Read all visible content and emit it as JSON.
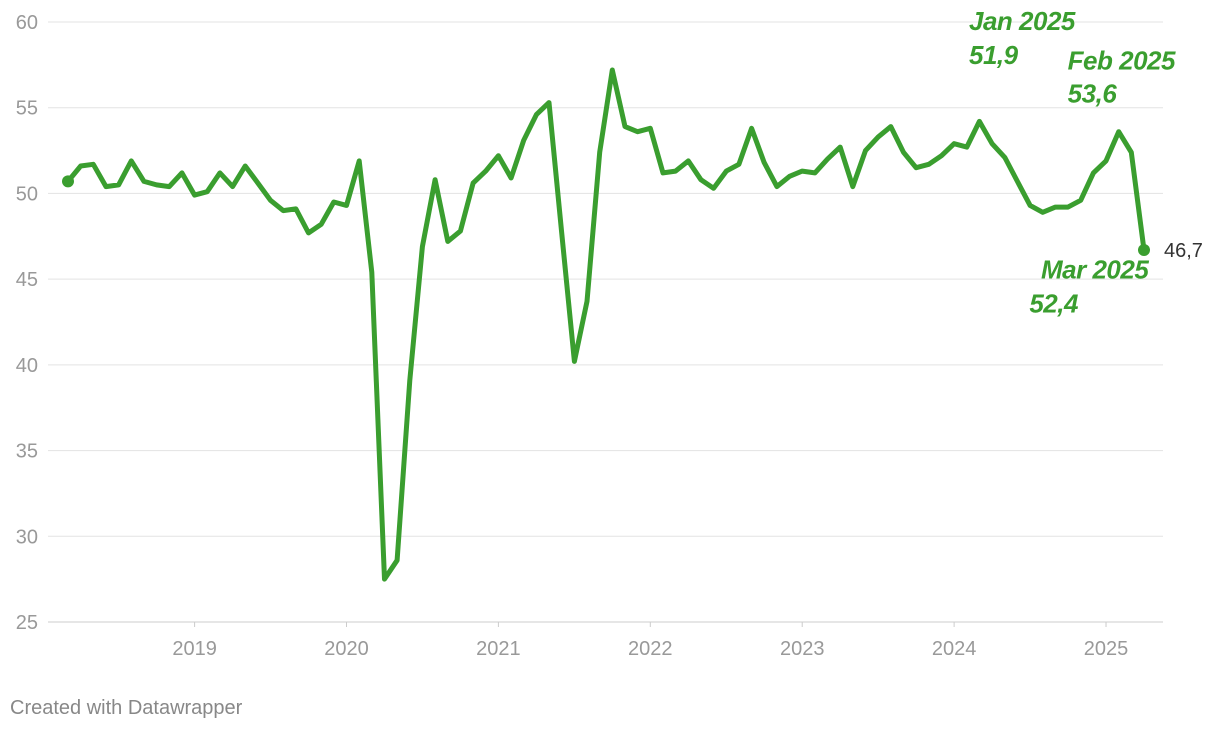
{
  "chart_data": {
    "type": "line",
    "x": [
      "2018-03",
      "2018-04",
      "2018-05",
      "2018-06",
      "2018-07",
      "2018-08",
      "2018-09",
      "2018-10",
      "2018-11",
      "2018-12",
      "2019-01",
      "2019-02",
      "2019-03",
      "2019-04",
      "2019-05",
      "2019-06",
      "2019-07",
      "2019-08",
      "2019-09",
      "2019-10",
      "2019-11",
      "2019-12",
      "2020-01",
      "2020-02",
      "2020-03",
      "2020-04",
      "2020-05",
      "2020-06",
      "2020-07",
      "2020-08",
      "2020-09",
      "2020-10",
      "2020-11",
      "2020-12",
      "2021-01",
      "2021-02",
      "2021-03",
      "2021-04",
      "2021-05",
      "2021-06",
      "2021-07",
      "2021-08",
      "2021-09",
      "2021-10",
      "2021-11",
      "2021-12",
      "2022-01",
      "2022-02",
      "2022-03",
      "2022-04",
      "2022-05",
      "2022-06",
      "2022-07",
      "2022-08",
      "2022-09",
      "2022-10",
      "2022-11",
      "2022-12",
      "2023-01",
      "2023-02",
      "2023-03",
      "2023-04",
      "2023-05",
      "2023-06",
      "2023-07",
      "2023-08",
      "2023-09",
      "2023-10",
      "2023-11",
      "2023-12",
      "2024-01",
      "2024-02",
      "2024-03",
      "2024-04",
      "2024-05",
      "2024-06",
      "2024-07",
      "2024-08",
      "2024-09",
      "2024-10",
      "2024-11",
      "2024-12",
      "2025-01",
      "2025-02",
      "2025-03",
      "2025-04"
    ],
    "series": [
      {
        "color": "#3a9e2f",
        "values": [
          50.7,
          51.6,
          51.7,
          50.4,
          50.5,
          51.9,
          50.7,
          50.5,
          50.4,
          51.2,
          49.9,
          50.1,
          51.2,
          50.4,
          51.6,
          50.6,
          49.6,
          49.0,
          49.1,
          47.7,
          48.2,
          49.5,
          49.3,
          51.9,
          45.4,
          27.5,
          28.6,
          39.1,
          46.9,
          50.8,
          47.2,
          47.8,
          50.6,
          51.3,
          52.2,
          50.9,
          53.1,
          54.6,
          55.3,
          47.7,
          40.2,
          43.7,
          52.4,
          57.2,
          53.9,
          53.6,
          53.8,
          51.2,
          51.3,
          51.9,
          50.8,
          50.3,
          51.3,
          51.7,
          53.8,
          51.8,
          50.4,
          51.0,
          51.3,
          51.2,
          52.0,
          52.7,
          50.4,
          52.5,
          53.3,
          53.9,
          52.4,
          51.5,
          51.7,
          52.2,
          52.9,
          52.7,
          54.2,
          52.9,
          52.1,
          50.7,
          49.3,
          48.9,
          49.2,
          49.2,
          49.6,
          51.2,
          51.9,
          53.6,
          52.4,
          46.7
        ],
        "value_labels": [
          null,
          null,
          null,
          null,
          null,
          null,
          null,
          null,
          null,
          null,
          null,
          null,
          null,
          null,
          null,
          null,
          null,
          null,
          null,
          null,
          null,
          null,
          null,
          null,
          null,
          null,
          null,
          null,
          null,
          null,
          null,
          null,
          null,
          null,
          null,
          null,
          null,
          null,
          null,
          null,
          null,
          null,
          null,
          null,
          null,
          null,
          null,
          null,
          null,
          null,
          null,
          null,
          null,
          null,
          null,
          null,
          null,
          null,
          null,
          null,
          null,
          null,
          null,
          null,
          null,
          null,
          null,
          null,
          null,
          null,
          null,
          null,
          null,
          null,
          null,
          null,
          null,
          null,
          null,
          null,
          null,
          null,
          null,
          null,
          null,
          "46,7"
        ]
      }
    ],
    "xlim": [
      "2018-03",
      "2025-04"
    ],
    "xticks": [
      {
        "value": "2019-01",
        "label": "2019"
      },
      {
        "value": "2020-01",
        "label": "2020"
      },
      {
        "value": "2021-01",
        "label": "2021"
      },
      {
        "value": "2022-01",
        "label": "2022"
      },
      {
        "value": "2023-01",
        "label": "2023"
      },
      {
        "value": "2024-01",
        "label": "2024"
      },
      {
        "value": "2025-01",
        "label": "2025"
      }
    ],
    "ylim": [
      25,
      60
    ],
    "yticks": [
      25,
      30,
      35,
      40,
      45,
      50,
      55,
      60
    ],
    "grid": true,
    "annotations": [
      {
        "x": "2025-01",
        "text": "Jan 2025",
        "value": 51.9,
        "value_label": "51,9"
      },
      {
        "x": "2025-02",
        "text": "Feb 2025",
        "value": 53.6,
        "value_label": "53,6"
      },
      {
        "x": "2025-03",
        "text": "Mar 2025",
        "value": 52.4,
        "value_label": "52,4"
      }
    ],
    "footer": "Created with Datawrapper"
  }
}
